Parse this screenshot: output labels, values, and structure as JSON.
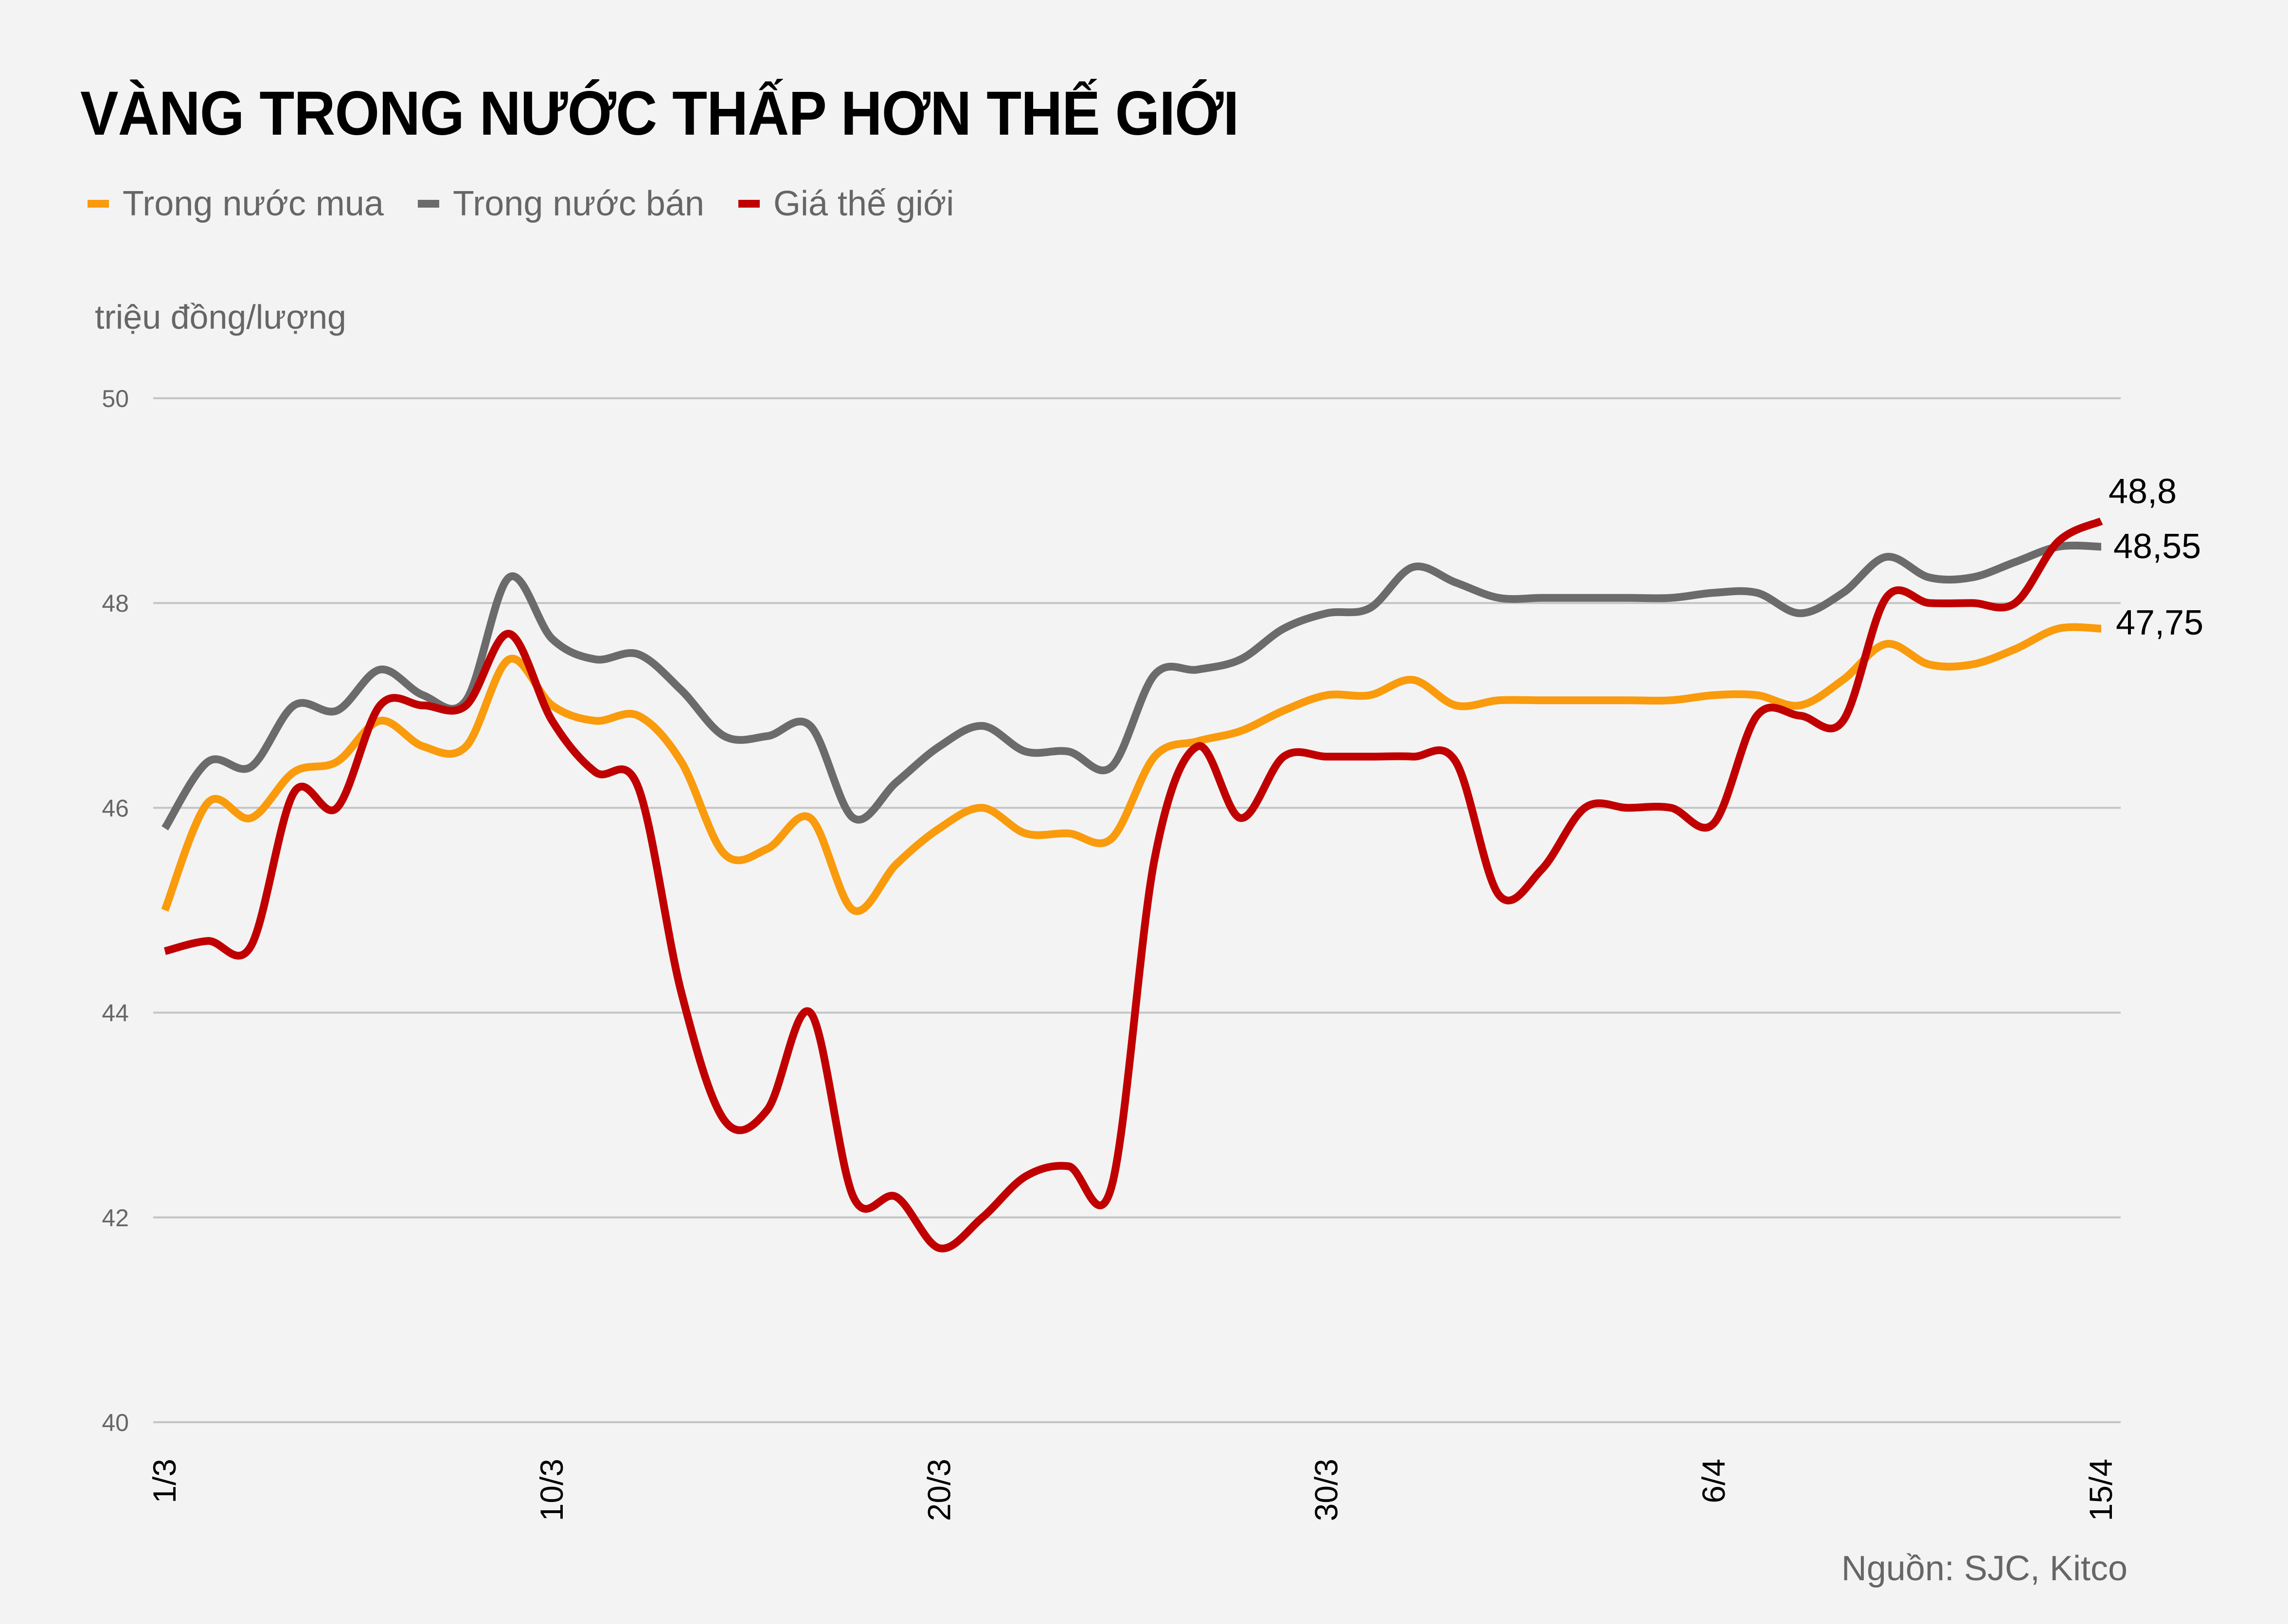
{
  "title": "VÀNG TRONG NƯỚC THẤP HƠN THẾ GIỚI",
  "unit_label": "triệu đồng/lượng",
  "source": "Nguồn: SJC, Kitco",
  "legend": [
    {
      "label": "Trong nước mua",
      "color": "#f99b0c"
    },
    {
      "label": "Trong nước bán",
      "color": "#6b6b6b"
    },
    {
      "label": "Giá thế giới",
      "color": "#c00000"
    }
  ],
  "chart_data": {
    "type": "line",
    "title": "VÀNG TRONG NƯỚC THẤP HƠN THẾ GIỚI",
    "xlabel": "",
    "ylabel": "triệu đồng/lượng",
    "ylim": [
      40,
      50
    ],
    "yticks": [
      40,
      42,
      44,
      46,
      48,
      50
    ],
    "xtick_labels": [
      "1/3",
      "10/3",
      "20/3",
      "30/3",
      "6/4",
      "15/4"
    ],
    "grid": true,
    "legend_position": "top-left",
    "x_index": [
      0,
      1,
      2,
      3,
      4,
      5,
      6,
      7,
      8,
      9,
      10,
      11,
      12,
      13,
      14,
      15,
      16,
      17,
      18,
      19,
      20,
      21,
      22,
      23,
      24,
      25,
      26,
      27,
      28,
      29,
      30,
      31,
      32,
      33,
      34,
      35,
      36,
      37,
      38,
      39,
      40,
      41,
      42,
      43,
      44,
      45
    ],
    "series": [
      {
        "name": "Trong nước mua",
        "color": "#f99b0c",
        "values": [
          45.0,
          46.05,
          45.9,
          46.35,
          46.45,
          46.85,
          46.6,
          46.6,
          47.45,
          47.0,
          46.85,
          46.9,
          46.45,
          45.55,
          45.6,
          45.9,
          45.0,
          45.45,
          45.8,
          46.0,
          45.75,
          45.75,
          45.7,
          46.5,
          46.65,
          46.75,
          46.95,
          47.1,
          47.1,
          47.25,
          47.0,
          47.05,
          47.05,
          47.05,
          47.05,
          47.05,
          47.1,
          47.1,
          47.0,
          47.25,
          47.6,
          47.4,
          47.4,
          47.55,
          47.75,
          47.75
        ]
      },
      {
        "name": "Trong nước bán",
        "color": "#6b6b6b",
        "values": [
          45.8,
          46.45,
          46.4,
          47.0,
          46.95,
          47.35,
          47.1,
          47.05,
          48.25,
          47.65,
          47.45,
          47.5,
          47.15,
          46.7,
          46.7,
          46.8,
          45.9,
          46.25,
          46.6,
          46.8,
          46.55,
          46.55,
          46.4,
          47.3,
          47.35,
          47.45,
          47.75,
          47.9,
          47.95,
          48.35,
          48.2,
          48.05,
          48.05,
          48.05,
          48.05,
          48.05,
          48.1,
          48.1,
          47.9,
          48.1,
          48.45,
          48.25,
          48.25,
          48.4,
          48.55,
          48.55
        ]
      },
      {
        "name": "Giá thế giới",
        "color": "#c00000",
        "values": [
          44.6,
          44.7,
          44.65,
          46.15,
          46.0,
          47.0,
          47.0,
          47.0,
          47.7,
          46.85,
          46.35,
          46.2,
          44.2,
          42.95,
          43.05,
          44.0,
          42.2,
          42.2,
          41.7,
          42.0,
          42.4,
          42.5,
          42.3,
          45.5,
          46.6,
          45.9,
          46.5,
          46.5,
          46.5,
          46.5,
          46.45,
          45.15,
          45.4,
          46.0,
          46.0,
          46.0,
          45.85,
          46.9,
          46.9,
          46.85,
          48.05,
          48.0,
          48.0,
          48.0,
          48.6,
          48.8
        ]
      }
    ],
    "end_labels": [
      "47,75",
      "48,55",
      "48,8"
    ]
  }
}
